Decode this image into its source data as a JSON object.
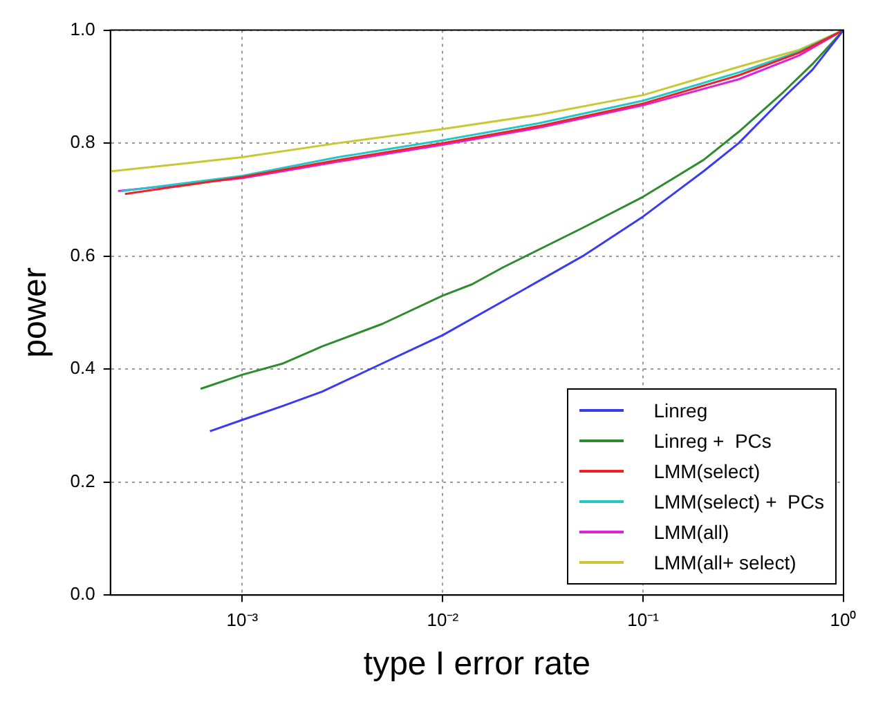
{
  "chart_data": {
    "type": "line",
    "xlabel": "type I error rate",
    "ylabel": "power",
    "log": "x",
    "grid": true,
    "legend": "bottom right",
    "marker": "none",
    "line_style": "solid",
    "xlim": [
      0.00022,
      1
    ],
    "xticks": [
      {
        "value": 0.001,
        "label": "10⁻³"
      },
      {
        "value": 0.01,
        "label": "10⁻²"
      },
      {
        "value": 0.1,
        "label": "10⁻¹"
      },
      {
        "value": 1,
        "label": "10⁰"
      }
    ],
    "ylim": [
      0,
      1
    ],
    "yticks": [
      {
        "value": 0,
        "label": "0.0"
      },
      0.2,
      0.4,
      0.6,
      0.8,
      {
        "value": 1,
        "label": "1.0"
      }
    ],
    "series": [
      {
        "name": "Linreg",
        "color": "#3a3af0",
        "x": [
          0.00069,
          0.001,
          0.0016,
          0.0025,
          0.005,
          0.01,
          0.02,
          0.05,
          0.1,
          0.2,
          0.3,
          0.5,
          0.7,
          1
        ],
        "values": [
          0.29,
          0.31,
          0.335,
          0.36,
          0.41,
          0.46,
          0.52,
          0.6,
          0.67,
          0.75,
          0.8,
          0.88,
          0.93,
          1
        ]
      },
      {
        "name": "Linreg +  PCs",
        "color": "#2e8b2e",
        "x": [
          0.00062,
          0.001,
          0.0016,
          0.0025,
          0.005,
          0.01,
          0.014,
          0.02,
          0.05,
          0.1,
          0.2,
          0.3,
          0.5,
          0.7,
          1
        ],
        "values": [
          0.365,
          0.39,
          0.41,
          0.44,
          0.48,
          0.53,
          0.55,
          0.58,
          0.65,
          0.705,
          0.77,
          0.82,
          0.89,
          0.94,
          1
        ]
      },
      {
        "name": "LMM(select)",
        "color": "#ee2222",
        "x": [
          0.00026,
          0.001,
          0.003,
          0.01,
          0.03,
          0.1,
          0.3,
          0.6,
          1
        ],
        "values": [
          0.71,
          0.74,
          0.77,
          0.8,
          0.83,
          0.87,
          0.92,
          0.96,
          1
        ]
      },
      {
        "name": "LMM(select) +  PCs",
        "color": "#22c8c8",
        "x": [
          0.00025,
          0.001,
          0.003,
          0.01,
          0.03,
          0.1,
          0.3,
          0.6,
          1
        ],
        "values": [
          0.715,
          0.742,
          0.775,
          0.805,
          0.835,
          0.875,
          0.925,
          0.962,
          1
        ]
      },
      {
        "name": "LMM(all)",
        "color": "#dd22dd",
        "x": [
          0.00024,
          0.001,
          0.003,
          0.01,
          0.03,
          0.1,
          0.3,
          0.6,
          1
        ],
        "values": [
          0.715,
          0.738,
          0.767,
          0.797,
          0.827,
          0.867,
          0.913,
          0.955,
          1
        ]
      },
      {
        "name": "LMM(all+ select)",
        "color": "#c8c832",
        "x": [
          0.00022,
          0.001,
          0.003,
          0.01,
          0.03,
          0.1,
          0.3,
          0.6,
          1
        ],
        "values": [
          0.75,
          0.775,
          0.8,
          0.825,
          0.85,
          0.885,
          0.935,
          0.965,
          1
        ]
      }
    ]
  }
}
